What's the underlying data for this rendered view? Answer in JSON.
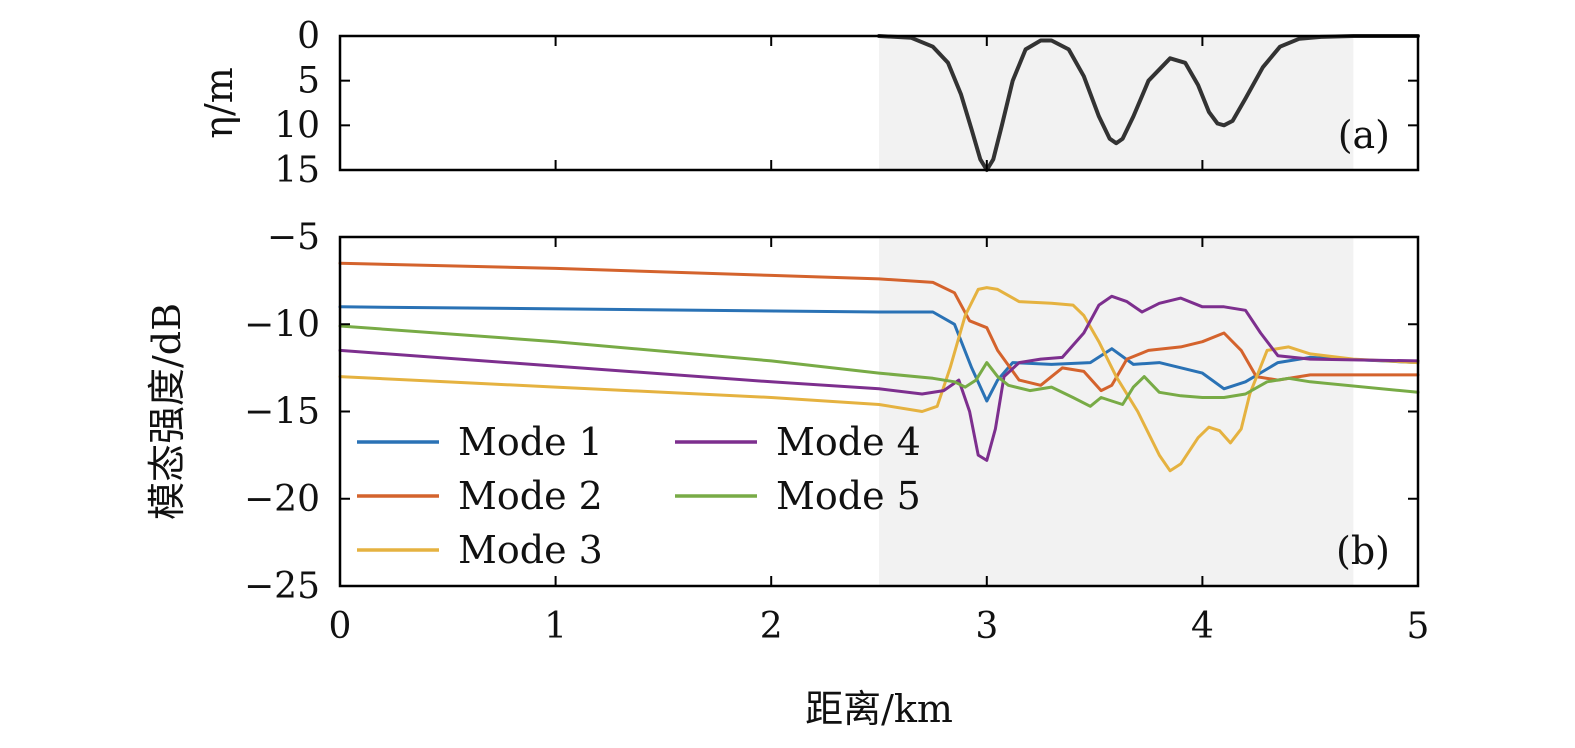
{
  "chart_data": [
    {
      "panel": "(a)",
      "type": "line",
      "title": "",
      "xlabel": "",
      "ylabel": "η/m",
      "xlim": [
        0,
        5
      ],
      "ylim": [
        0,
        15
      ],
      "y_inverted": true,
      "yticks": [
        "0",
        "5",
        "10",
        "15"
      ],
      "shaded_region": {
        "x_start": 2.5,
        "x_end": 4.7,
        "color": "#f2f2f2"
      },
      "series": [
        {
          "color": "#333333",
          "x": [
            2.5,
            2.65,
            2.75,
            2.82,
            2.88,
            2.93,
            2.97,
            3.0,
            3.03,
            3.07,
            3.12,
            3.18,
            3.25,
            3.3,
            3.38,
            3.45,
            3.52,
            3.57,
            3.6,
            3.63,
            3.68,
            3.75,
            3.85,
            3.92,
            3.98,
            4.03,
            4.07,
            4.1,
            4.14,
            4.2,
            4.28,
            4.36,
            4.45,
            4.55,
            4.7,
            5.0
          ],
          "y": [
            0,
            0.2,
            1.2,
            3.0,
            6.5,
            10.5,
            13.8,
            15.0,
            13.8,
            10.0,
            5.0,
            1.5,
            0.5,
            0.5,
            1.5,
            4.5,
            9.0,
            11.5,
            12.0,
            11.5,
            9.0,
            5.0,
            2.5,
            3.0,
            5.5,
            8.5,
            9.8,
            10.0,
            9.5,
            7.0,
            3.5,
            1.2,
            0.3,
            0.1,
            0,
            0
          ]
        }
      ]
    },
    {
      "panel": "(b)",
      "type": "line",
      "title": "",
      "xlabel": "距离/km",
      "ylabel": "模态强度/dB",
      "xlim": [
        0,
        5
      ],
      "ylim": [
        -25,
        -5
      ],
      "xticks": [
        "0",
        "1",
        "2",
        "3",
        "4",
        "5"
      ],
      "yticks": [
        "−5",
        "−10",
        "−15",
        "−20",
        "−25"
      ],
      "legend": "lower-left",
      "shaded_region": {
        "x_start": 2.5,
        "x_end": 4.7,
        "color": "#f2f2f2"
      },
      "series": [
        {
          "name": "Mode 1",
          "color": "#2a72b5",
          "x": [
            0,
            2.5,
            2.75,
            2.85,
            2.93,
            3.0,
            3.05,
            3.12,
            3.3,
            3.48,
            3.58,
            3.68,
            3.8,
            4.0,
            4.1,
            4.2,
            4.35,
            4.5,
            5.0
          ],
          "y": [
            -9.0,
            -9.3,
            -9.3,
            -10.0,
            -12.5,
            -14.4,
            -13.2,
            -12.2,
            -12.3,
            -12.2,
            -11.4,
            -12.3,
            -12.2,
            -12.8,
            -13.7,
            -13.3,
            -12.2,
            -11.9,
            -12.2
          ]
        },
        {
          "name": "Mode 2",
          "color": "#d4632d",
          "x": [
            0,
            1.0,
            2.0,
            2.5,
            2.75,
            2.85,
            2.92,
            3.0,
            3.05,
            3.15,
            3.25,
            3.35,
            3.45,
            3.53,
            3.58,
            3.65,
            3.75,
            3.9,
            4.0,
            4.1,
            4.18,
            4.25,
            4.35,
            4.5,
            5.0
          ],
          "y": [
            -6.5,
            -6.8,
            -7.2,
            -7.4,
            -7.6,
            -8.2,
            -9.8,
            -10.2,
            -11.5,
            -13.2,
            -13.5,
            -12.5,
            -12.7,
            -13.8,
            -13.5,
            -12.0,
            -11.5,
            -11.3,
            -11.0,
            -10.5,
            -11.5,
            -13.0,
            -13.2,
            -12.9,
            -12.9
          ]
        },
        {
          "name": "Mode 3",
          "color": "#e5b240",
          "x": [
            0,
            1.0,
            2.0,
            2.5,
            2.7,
            2.77,
            2.83,
            2.9,
            2.96,
            3.0,
            3.05,
            3.15,
            3.3,
            3.4,
            3.45,
            3.52,
            3.6,
            3.7,
            3.8,
            3.85,
            3.9,
            3.98,
            4.03,
            4.08,
            4.13,
            4.18,
            4.22,
            4.3,
            4.4,
            4.5,
            4.7,
            5.0
          ],
          "y": [
            -13.0,
            -13.6,
            -14.2,
            -14.6,
            -15.0,
            -14.7,
            -12.5,
            -9.5,
            -8.0,
            -7.9,
            -8.0,
            -8.7,
            -8.8,
            -8.9,
            -9.5,
            -11.0,
            -13.0,
            -15.0,
            -17.5,
            -18.4,
            -18.0,
            -16.5,
            -15.9,
            -16.1,
            -16.8,
            -16.0,
            -14.0,
            -11.5,
            -11.3,
            -11.7,
            -12.0,
            -12.2
          ]
        },
        {
          "name": "Mode 4",
          "color": "#7d2f8e",
          "x": [
            0,
            1.0,
            2.0,
            2.5,
            2.7,
            2.8,
            2.87,
            2.92,
            2.96,
            3.0,
            3.04,
            3.08,
            3.15,
            3.25,
            3.35,
            3.45,
            3.52,
            3.58,
            3.65,
            3.72,
            3.8,
            3.9,
            4.0,
            4.1,
            4.2,
            4.27,
            4.35,
            4.5,
            5.0
          ],
          "y": [
            -11.5,
            -12.4,
            -13.3,
            -13.7,
            -14.0,
            -13.8,
            -13.2,
            -15.0,
            -17.5,
            -17.8,
            -16.0,
            -13.0,
            -12.2,
            -12.0,
            -11.9,
            -10.5,
            -8.9,
            -8.4,
            -8.7,
            -9.3,
            -8.8,
            -8.5,
            -9.0,
            -9.0,
            -9.2,
            -10.5,
            -11.8,
            -12.0,
            -12.1
          ]
        },
        {
          "name": "Mode 5",
          "color": "#78ab46",
          "x": [
            0,
            1.0,
            2.0,
            2.5,
            2.75,
            2.85,
            2.9,
            2.95,
            3.0,
            3.05,
            3.1,
            3.2,
            3.3,
            3.4,
            3.48,
            3.53,
            3.58,
            3.63,
            3.68,
            3.73,
            3.8,
            3.9,
            4.0,
            4.1,
            4.2,
            4.3,
            4.4,
            4.5,
            5.0
          ],
          "y": [
            -10.1,
            -11.0,
            -12.1,
            -12.8,
            -13.1,
            -13.3,
            -13.6,
            -13.2,
            -12.2,
            -13.0,
            -13.5,
            -13.8,
            -13.6,
            -14.2,
            -14.7,
            -14.2,
            -14.4,
            -14.6,
            -13.6,
            -13.0,
            -13.9,
            -14.1,
            -14.2,
            -14.2,
            -14.0,
            -13.3,
            -13.1,
            -13.3,
            -13.9
          ]
        }
      ]
    }
  ]
}
